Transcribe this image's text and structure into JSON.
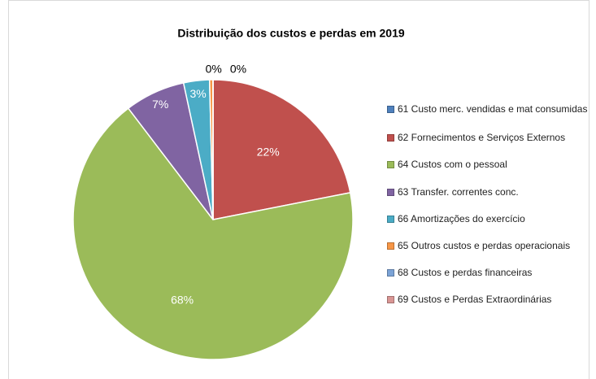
{
  "chart_data": {
    "type": "pie",
    "title": "Distribuição dos custos e perdas em 2019",
    "categories": [
      "61 Custo merc. vendidas e mat consumidas",
      "62 Fornecimentos e Serviços Externos",
      "64 Custos com o pessoal",
      "63 Transfer. correntes conc.",
      "66 Amortizações do exercício",
      "65 Outros custos e perdas operacionais",
      "68 Custos e perdas financeiras",
      "69 Custos e Perdas Extraordinárias"
    ],
    "values": [
      0,
      22,
      68,
      7,
      3,
      0.4,
      0,
      0
    ],
    "value_labels": [
      "0%",
      "22%",
      "68%",
      "7%",
      "3%",
      "0%",
      null,
      null
    ],
    "colors": [
      "#4f81bd",
      "#c0504d",
      "#9bbb59",
      "#8064a2",
      "#4bacc6",
      "#f79646",
      "#7ba3d6",
      "#d99694"
    ],
    "legend": "right"
  }
}
